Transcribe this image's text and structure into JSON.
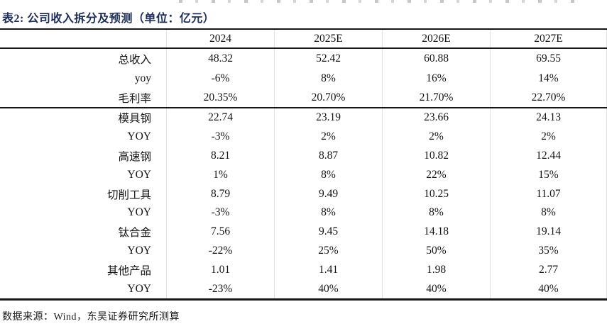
{
  "title": "表2:  公司收入拆分及预测（单位：亿元）",
  "table": {
    "columns": [
      "",
      "2024",
      "2025E",
      "2026E",
      "2027E"
    ],
    "rows": [
      {
        "label": "总收入",
        "values": [
          "48.32",
          "52.42",
          "60.88",
          "69.55"
        ]
      },
      {
        "label": "yoy",
        "values": [
          "-6%",
          "8%",
          "16%",
          "14%"
        ]
      },
      {
        "label": "毛利率",
        "values": [
          "20.35%",
          "20.70%",
          "21.70%",
          "22.70%"
        ]
      },
      {
        "label": "模具钢",
        "values": [
          "22.74",
          "23.19",
          "23.66",
          "24.13"
        ]
      },
      {
        "label": "YOY",
        "values": [
          "-3%",
          "2%",
          "2%",
          "2%"
        ]
      },
      {
        "label": "高速钢",
        "values": [
          "8.21",
          "8.87",
          "10.82",
          "12.44"
        ]
      },
      {
        "label": "YOY",
        "values": [
          "1%",
          "8%",
          "22%",
          "15%"
        ]
      },
      {
        "label": "切削工具",
        "values": [
          "8.79",
          "9.49",
          "10.25",
          "11.07"
        ]
      },
      {
        "label": "YOY",
        "values": [
          "-3%",
          "8%",
          "8%",
          "8%"
        ]
      },
      {
        "label": "钛合金",
        "values": [
          "7.56",
          "9.45",
          "14.18",
          "19.14"
        ]
      },
      {
        "label": "YOY",
        "values": [
          "-22%",
          "25%",
          "50%",
          "35%"
        ]
      },
      {
        "label": "其他产品",
        "values": [
          "1.01",
          "1.41",
          "1.98",
          "2.77"
        ]
      },
      {
        "label": "YOY",
        "values": [
          "-23%",
          "40%",
          "40%",
          "40%"
        ]
      }
    ],
    "section_break_after_row": 2
  },
  "footer": {
    "source": "数据来源：Wind，东吴证券研究所测算"
  },
  "colors": {
    "title_navy": "#1c2d58",
    "text": "#141414",
    "rule": "#161616",
    "faint_grid": "#e2e2e2"
  }
}
